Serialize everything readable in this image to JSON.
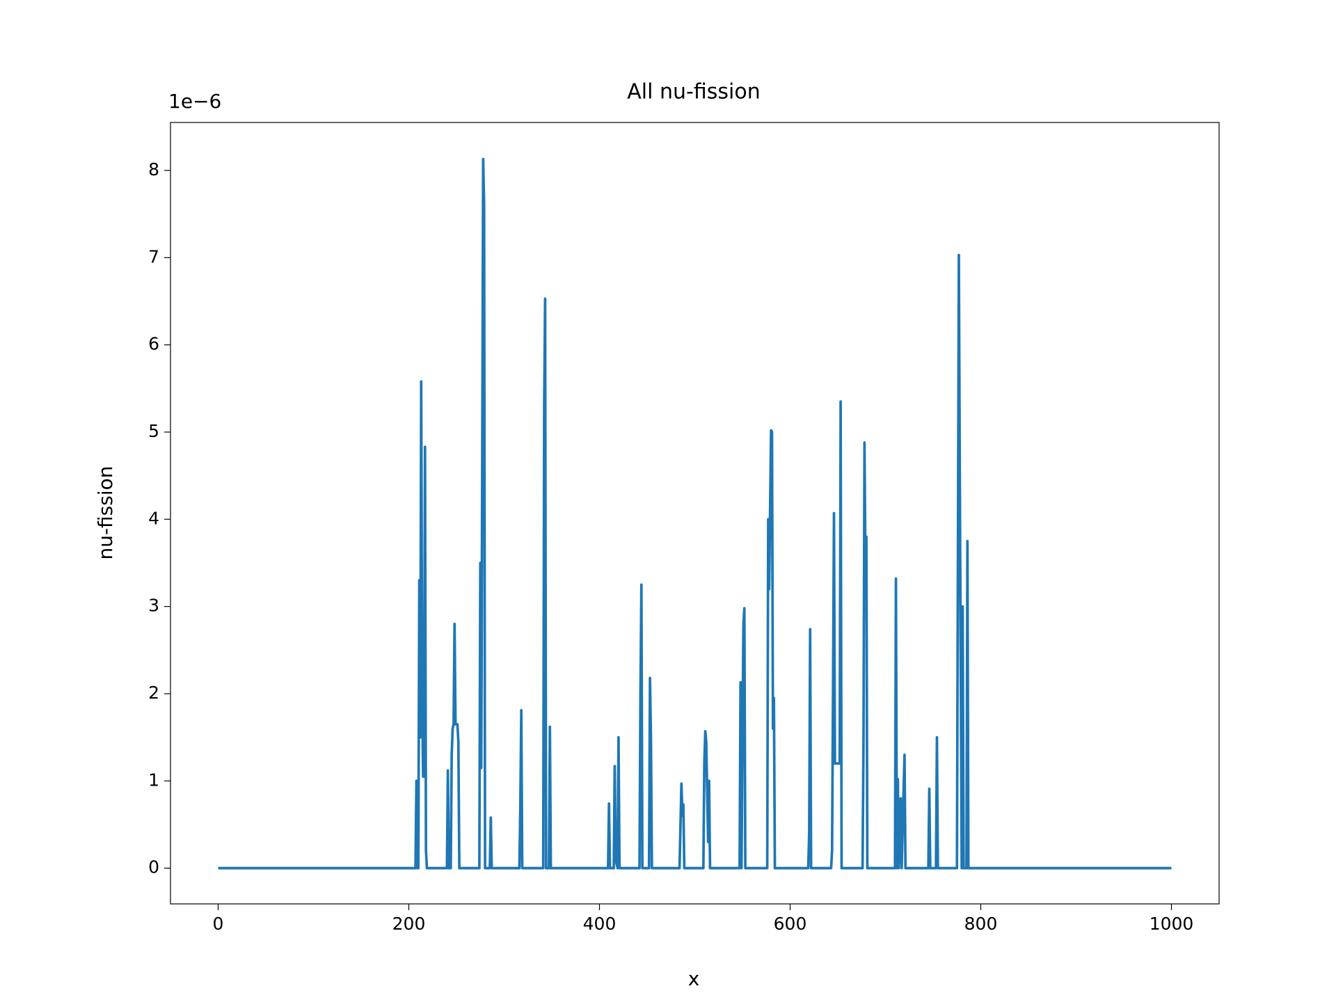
{
  "chart_data": {
    "type": "line",
    "title": "All nu-fission",
    "xlabel": "x",
    "ylabel": "nu-fission",
    "y_offset_text": "1e−6",
    "xlim": [
      -50,
      1050
    ],
    "xticks": [
      0,
      200,
      400,
      600,
      800,
      1000
    ],
    "ylim": [
      -0.41,
      8.55
    ],
    "yticks": [
      0,
      1,
      2,
      3,
      4,
      5,
      6,
      7,
      8
    ],
    "grid": false,
    "series": [
      {
        "name": "nu-fission",
        "color": "#1f77b4",
        "x": [
          0,
          207,
          208,
          209,
          210,
          211,
          212,
          213,
          214,
          215,
          216,
          217,
          218,
          219,
          240,
          241,
          242,
          244,
          245,
          246,
          247,
          248,
          249,
          250,
          251,
          252,
          253,
          274,
          275,
          276,
          278,
          279,
          280,
          285,
          286,
          287,
          316,
          317,
          318,
          319,
          341,
          342,
          343,
          344,
          345,
          347,
          348,
          349,
          409,
          410,
          411,
          415,
          416,
          417,
          419,
          420,
          421,
          442,
          443,
          444,
          445,
          452,
          453,
          454,
          455,
          484,
          485,
          486,
          487,
          488,
          489,
          509,
          510,
          511,
          512,
          514,
          515,
          516,
          547,
          548,
          549,
          551,
          552,
          553,
          576,
          577,
          578,
          580,
          581,
          582,
          583,
          584,
          619,
          620,
          621,
          622,
          643,
          644,
          645,
          646,
          647,
          652,
          653,
          654,
          676,
          677,
          678,
          679,
          680,
          681,
          710,
          711,
          712,
          713,
          714,
          716,
          717,
          720,
          721,
          745,
          746,
          747,
          753,
          754,
          755,
          775,
          776,
          777,
          778,
          780,
          781,
          782,
          785,
          786,
          787,
          1000
        ],
        "values": [
          0,
          0,
          1.0,
          0,
          0,
          3.3,
          1.5,
          5.58,
          2.0,
          1.05,
          1.05,
          4.83,
          0.2,
          0,
          0,
          1.12,
          0,
          0,
          1.3,
          1.6,
          1.65,
          2.8,
          1.65,
          1.65,
          1.65,
          1.45,
          0,
          0,
          3.5,
          1.15,
          8.13,
          7.6,
          0,
          0,
          0.58,
          0,
          0,
          0.7,
          1.81,
          0,
          0,
          5.3,
          6.53,
          0,
          0,
          0,
          1.62,
          0,
          0,
          0.74,
          0,
          0,
          1.17,
          0.1,
          0,
          1.5,
          0,
          0,
          2.0,
          3.25,
          0,
          0,
          2.18,
          1.5,
          0,
          0,
          0.5,
          0.97,
          0.6,
          0.73,
          0,
          0,
          1.2,
          1.57,
          1.45,
          0.3,
          1.0,
          0,
          0,
          2.13,
          0,
          2.8,
          2.98,
          0,
          0,
          4.0,
          3.2,
          5.02,
          5.0,
          1.6,
          1.95,
          0,
          0,
          0.4,
          2.74,
          0,
          0,
          0.2,
          2.0,
          4.07,
          1.2,
          1.2,
          5.35,
          0,
          0,
          1.5,
          4.88,
          3.5,
          3.8,
          0,
          0,
          3.32,
          0,
          1.02,
          0,
          0.8,
          0,
          1.3,
          0,
          0,
          0.91,
          0,
          0,
          1.5,
          0,
          0,
          3.5,
          7.03,
          4.5,
          0,
          3.0,
          0,
          0,
          3.75,
          0,
          0
        ]
      }
    ]
  }
}
